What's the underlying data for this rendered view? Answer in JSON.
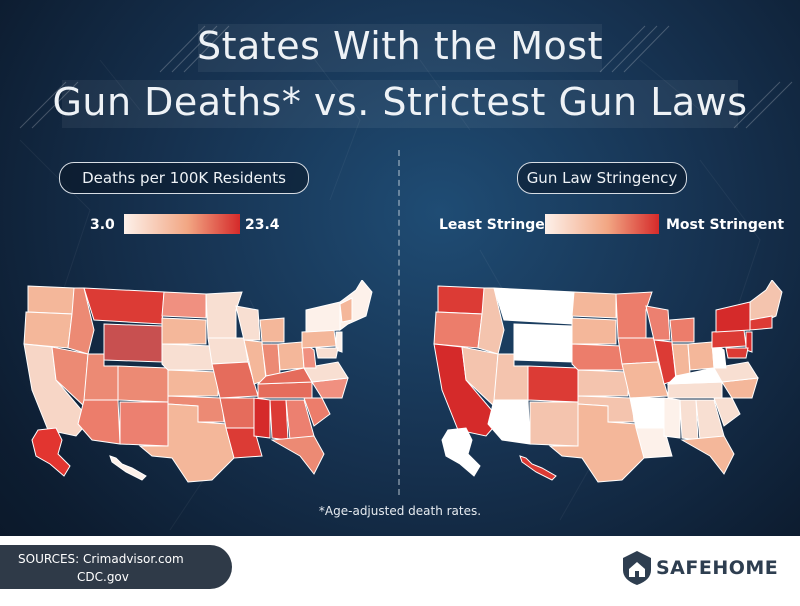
{
  "title": {
    "line1": "States With the Most",
    "line2": "Gun Deaths* vs. Strictest Gun Laws"
  },
  "left_panel": {
    "heading": "Deaths per 100K Residents",
    "legend_min": "3.0",
    "legend_max": "23.4"
  },
  "right_panel": {
    "heading": "Gun Law Stringency",
    "legend_min": "Least Stringent",
    "legend_max": "Most Stringent"
  },
  "footnote": "*Age-adjusted death rates.",
  "sources": {
    "line1": "SOURCES: Crimadvisor.com",
    "line2": "CDC.gov"
  },
  "brand": "SAFEHOME",
  "colors": {
    "scale_low": "#fdf1ea",
    "scale_mid": "#f2a683",
    "scale_high": "#d52a2a",
    "footer_pill": "#2f3a48",
    "logo": "#2e3e50"
  },
  "icons": {
    "logo": "house-shield-icon"
  }
}
